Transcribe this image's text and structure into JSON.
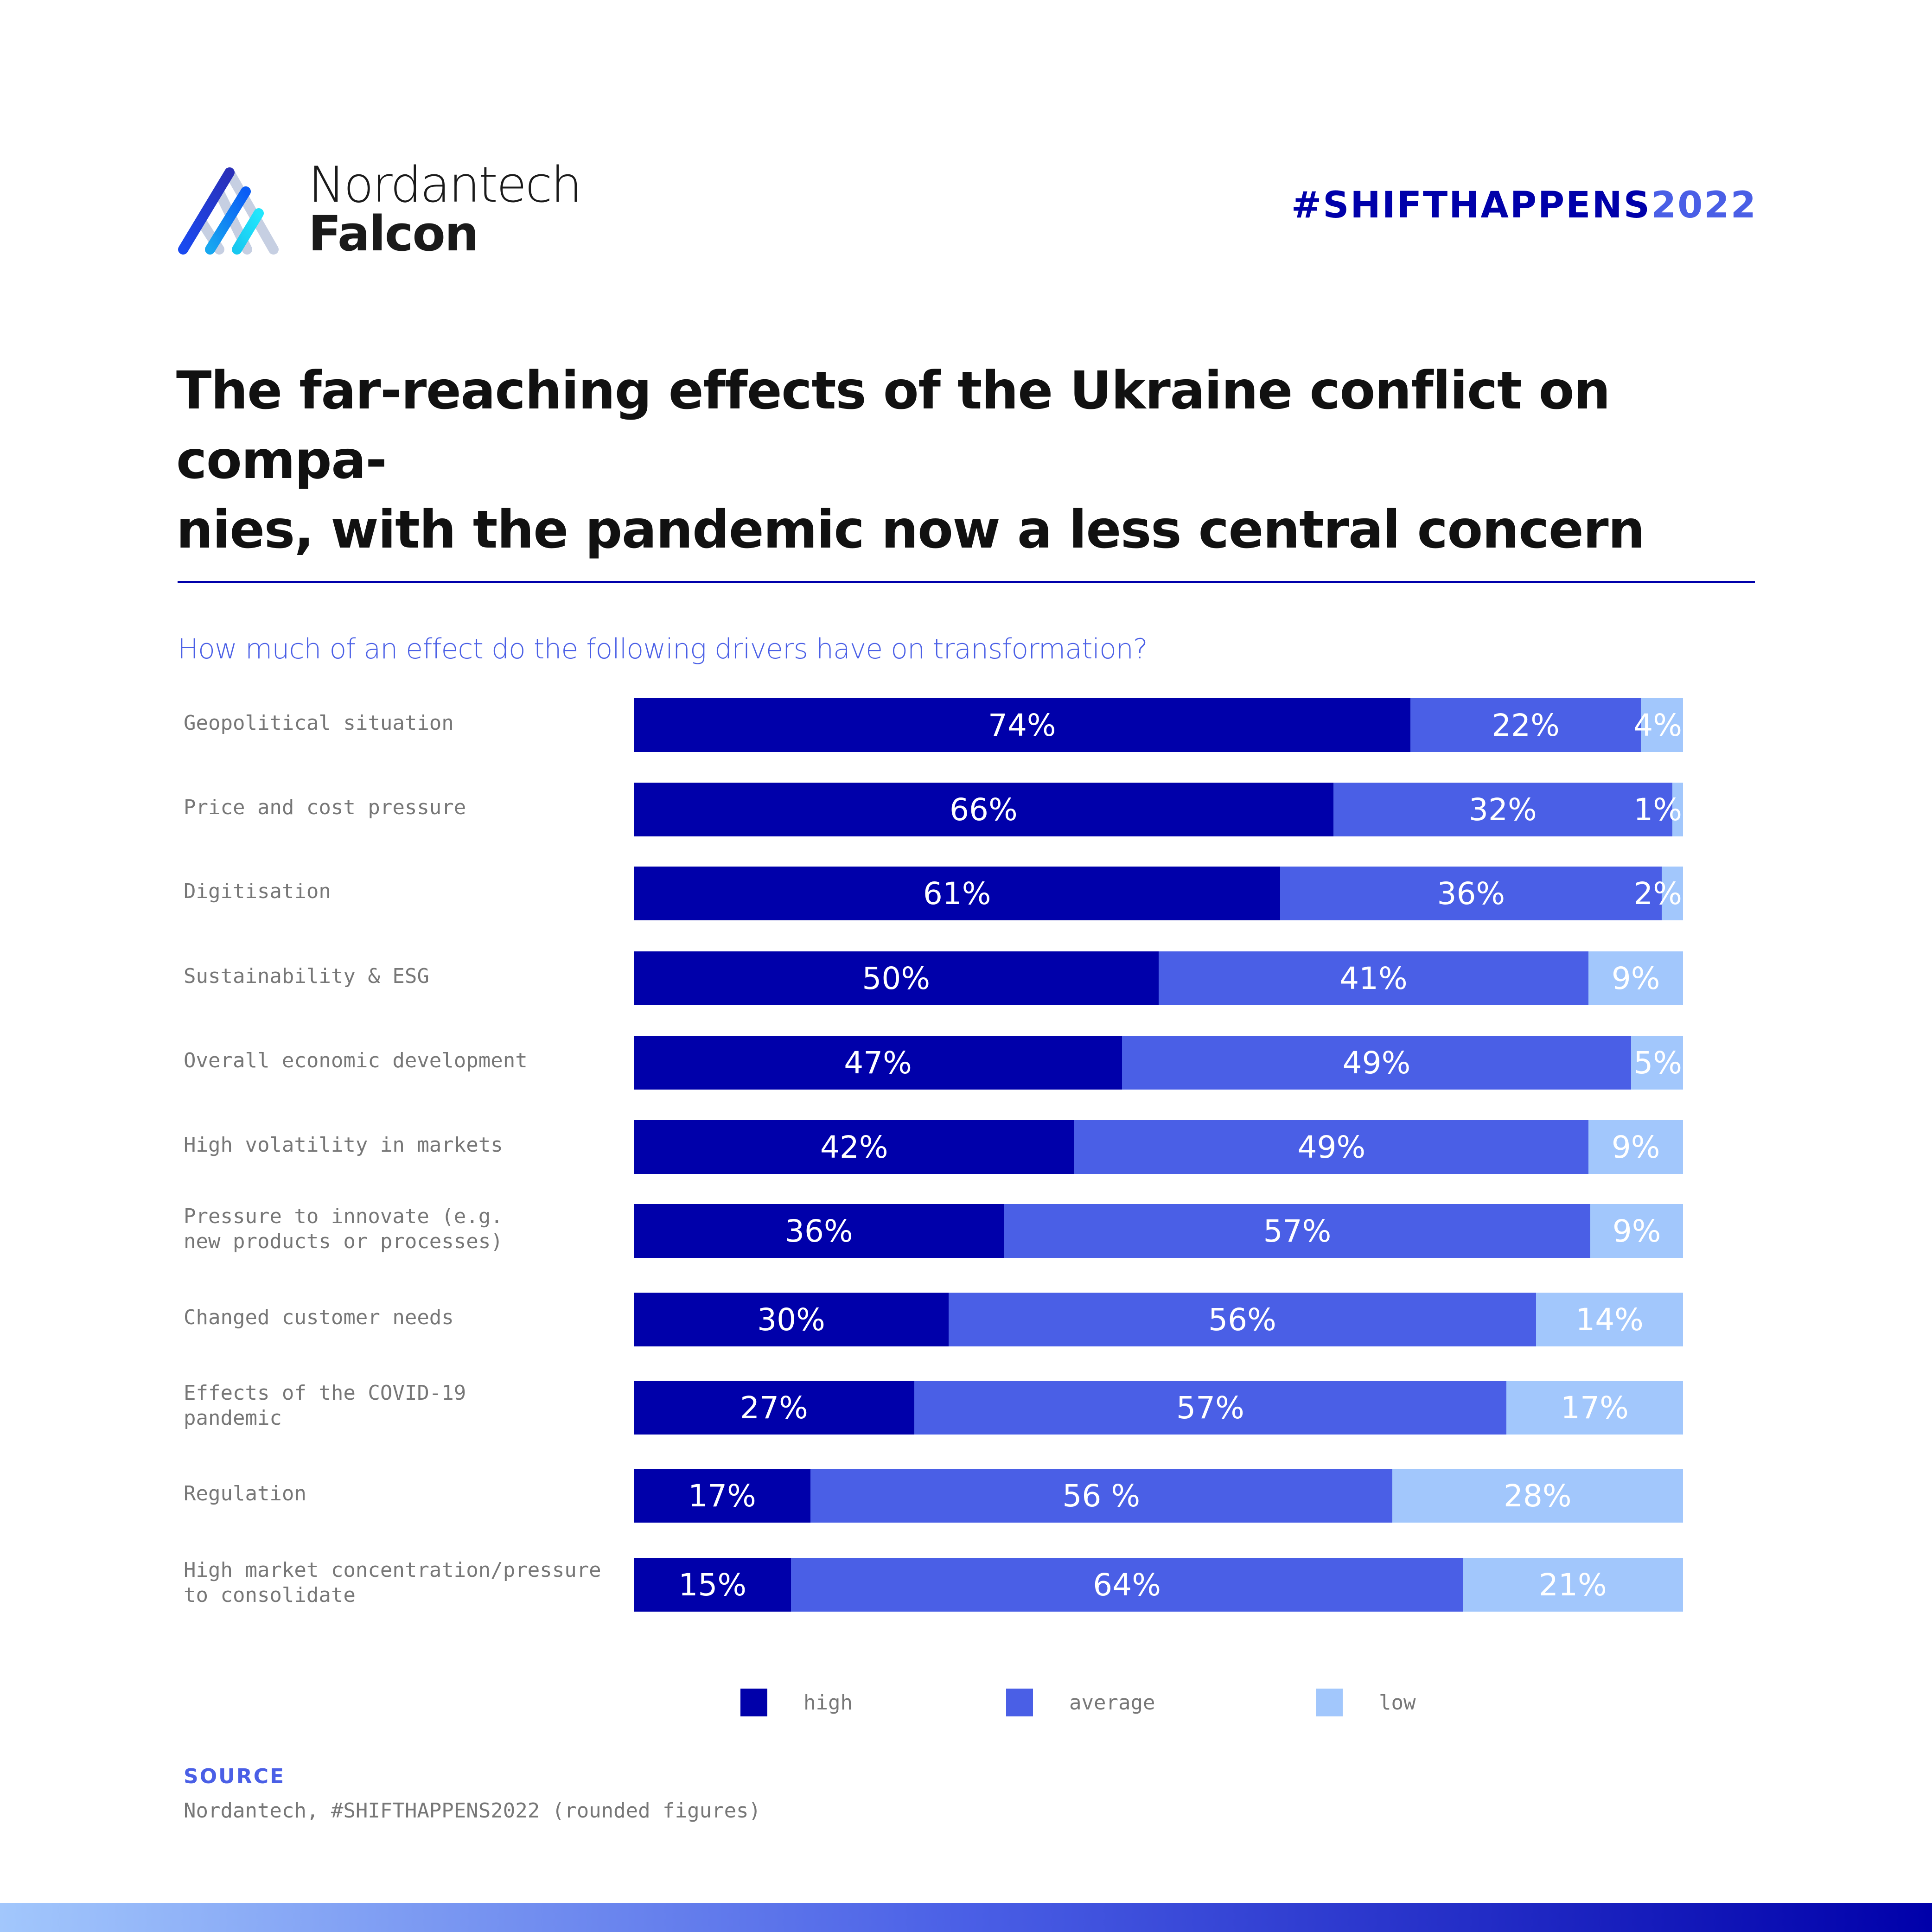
{
  "brand": {
    "name_line1": "Nordantech",
    "name_line2": "Falcon",
    "logo_icon": "falcon-a-logo"
  },
  "hashtag": {
    "prefix": "#SHIFTHAPPENS",
    "year": "2022"
  },
  "headline": "The far-reaching effects of the Ukraine conflict on compa-nies, with the pandemic now a less central concern",
  "headline_line1": "The far-reaching effects of the Ukraine conflict on compa-",
  "headline_line2": "nies, with the pandemic now a less central concern",
  "colors": {
    "high": "#0000aa",
    "average": "#4a5fe6",
    "low": "#a2c7fc",
    "accent": "#4a5fe6",
    "text_dark": "#111111",
    "text_gray": "#777777"
  },
  "chart_data": {
    "type": "bar",
    "orientation": "horizontal",
    "stacked": true,
    "title": "How much of an effect do the following drivers have on transformation?",
    "categories": [
      "Geopolitical situation",
      "Price and cost pressure",
      "Digitisation",
      "Sustainability & ESG",
      "Overall economic development",
      "High volatility in markets",
      "Pressure to innovate (e.g.\nnew products or processes)",
      "Changed customer needs",
      "Effects of the COVID-19\npandemic",
      "Regulation",
      "High market concentration/pressure\nto consolidate"
    ],
    "series": [
      {
        "name": "high",
        "values": [
          74,
          66,
          61,
          50,
          47,
          42,
          36,
          30,
          27,
          17,
          15
        ]
      },
      {
        "name": "average",
        "values": [
          22,
          32,
          36,
          41,
          49,
          49,
          57,
          56,
          57,
          56,
          64
        ]
      },
      {
        "name": "low",
        "values": [
          4,
          1,
          2,
          9,
          5,
          9,
          9,
          14,
          17,
          28,
          21
        ]
      }
    ],
    "value_labels": [
      [
        "74%",
        "22%",
        "4%"
      ],
      [
        "66%",
        "32%",
        "1%"
      ],
      [
        "61%",
        "36%",
        "2%"
      ],
      [
        "50%",
        "41%",
        "9%"
      ],
      [
        "47%",
        "49%",
        "5%"
      ],
      [
        "42%",
        "49%",
        "9%"
      ],
      [
        "36%",
        "57%",
        "9%"
      ],
      [
        "30%",
        "56%",
        "14%"
      ],
      [
        "27%",
        "57%",
        "17%"
      ],
      [
        "17%",
        "56 %",
        "28%"
      ],
      [
        "15%",
        "64%",
        "21%"
      ]
    ],
    "xlim": [
      0,
      100
    ],
    "unit": "%",
    "grid": false,
    "legend_position": "bottom",
    "legend": [
      "high",
      "average",
      "low"
    ]
  },
  "source": {
    "title": "SOURCE",
    "text": "Nordantech, #SHIFTHAPPENS2022 (rounded figures)"
  }
}
